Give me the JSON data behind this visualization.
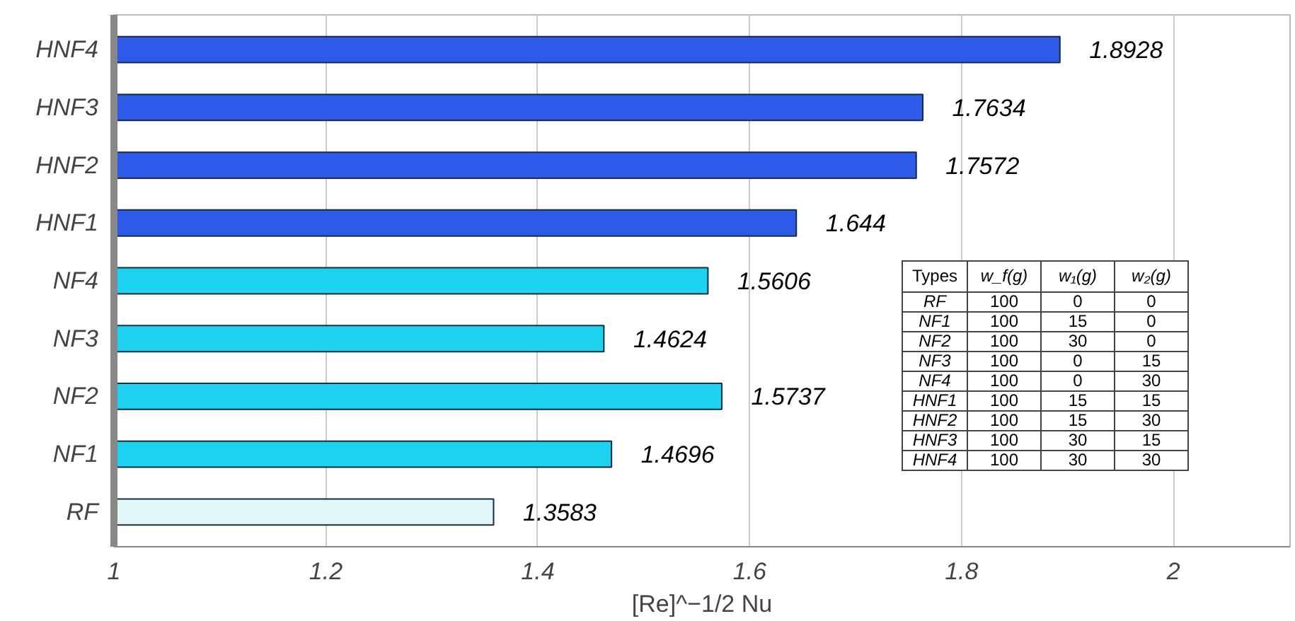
{
  "chart_data": {
    "type": "bar",
    "orientation": "horizontal",
    "xlabel": "[Re]^−1/2 Nu",
    "categories": [
      "HNF4",
      "HNF3",
      "HNF2",
      "HNF1",
      "NF4",
      "NF3",
      "NF2",
      "NF1",
      "RF"
    ],
    "values": [
      1.8928,
      1.7634,
      1.7572,
      1.644,
      1.5606,
      1.4624,
      1.5737,
      1.4696,
      1.3583
    ],
    "colors": [
      "#2e5be8",
      "#2e5be8",
      "#2e5be8",
      "#2e5be8",
      "#1cd2ee",
      "#1cd2ee",
      "#1cd2ee",
      "#1cd2ee",
      "#dff7f7"
    ],
    "data_labels": true,
    "xlim": [
      1,
      2.11
    ],
    "xticks": [
      1,
      1.2,
      1.4,
      1.6,
      1.8,
      2
    ],
    "grid": "x",
    "annotations": [
      "Types",
      "w_f(g)",
      "w₁(g)",
      "w₂(g)",
      "RF",
      "100",
      "0",
      "0",
      "NF1",
      "100",
      "15",
      "0",
      "NF2",
      "100",
      "30",
      "0",
      "NF3",
      "100",
      "0",
      "15",
      "NF4",
      "100",
      "0",
      "30",
      "HNF1",
      "100",
      "15",
      "15",
      "HNF2",
      "100",
      "15",
      "30",
      "HNF3",
      "100",
      "30",
      "15",
      "HNF4",
      "100",
      "30",
      "30"
    ]
  }
}
